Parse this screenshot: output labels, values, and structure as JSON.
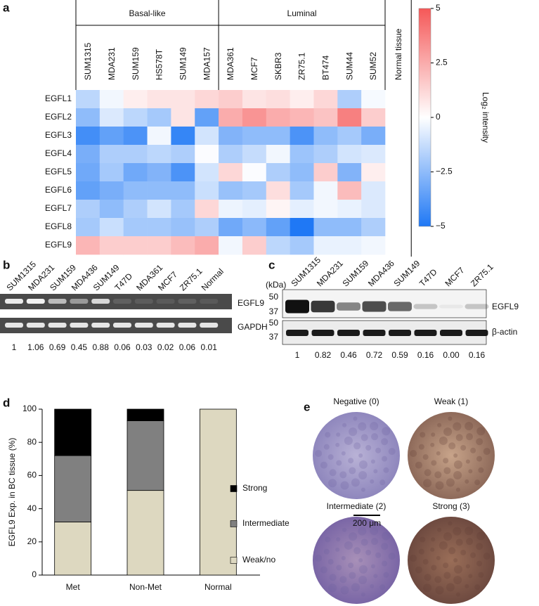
{
  "figure": {
    "a": {
      "letter": "a",
      "chart_data": {
        "type": "heatmap",
        "groups": [
          {
            "name": "Basal-like",
            "columns": [
              "SUM1315",
              "MDA231",
              "SUM159",
              "HS578T",
              "SUM149",
              "MDA157"
            ]
          },
          {
            "name": "Luminal",
            "columns": [
              "MDA361",
              "MCF7",
              "SKBR3",
              "ZR75.1",
              "BT474",
              "SUM44",
              "SUM52"
            ]
          }
        ],
        "extra_column": "Normal tissue",
        "rows": [
          "EGFL1",
          "EGFL2",
          "EGFL3",
          "EGFL4",
          "EGFL5",
          "EGFL6",
          "EGFL7",
          "EGFL8",
          "EGFL9"
        ],
        "values": [
          [
            -1.5,
            -0.3,
            0.5,
            0.8,
            0.8,
            1.2,
            1.5,
            0.8,
            1.0,
            0.5,
            1.2,
            -1.8,
            -0.2
          ],
          [
            -2.5,
            -0.8,
            -1.5,
            -2.0,
            0.8,
            -3.5,
            2.5,
            3.2,
            2.5,
            2.2,
            1.8,
            3.8,
            1.5
          ],
          [
            -4.2,
            -3.5,
            -4.0,
            -0.3,
            -4.5,
            -1.0,
            -2.8,
            -2.5,
            -2.5,
            -4.0,
            -2.5,
            -2.0,
            -3.0
          ],
          [
            -3.0,
            -1.8,
            -1.8,
            -1.5,
            -1.8,
            -0.1,
            -1.8,
            -1.3,
            -0.3,
            -2.2,
            -1.8,
            -1.0,
            -0.8
          ],
          [
            -3.2,
            -2.0,
            -3.2,
            -2.8,
            -4.0,
            -1.0,
            1.2,
            -0.1,
            -1.8,
            -2.5,
            1.5,
            -2.8,
            0.5
          ],
          [
            -3.5,
            -3.0,
            -2.5,
            -2.5,
            -2.5,
            -1.2,
            -2.3,
            -2.0,
            1.0,
            -2.0,
            -0.3,
            2.0,
            -0.8
          ],
          [
            -1.8,
            -2.5,
            -1.8,
            -1.0,
            -2.0,
            1.2,
            -0.4,
            -0.6,
            0.3,
            -0.6,
            -0.3,
            -0.5,
            -0.8
          ],
          [
            -2.0,
            -1.2,
            -2.0,
            -2.0,
            -2.3,
            -1.8,
            -3.2,
            -2.6,
            -3.5,
            -5.0,
            -2.5,
            -2.5,
            -1.8
          ],
          [
            2.2,
            1.5,
            1.5,
            1.5,
            2.0,
            2.5,
            -0.3,
            1.5,
            -1.5,
            -2.0,
            -0.5,
            -0.5,
            -0.3
          ]
        ],
        "colorbar": {
          "label": "Log₂ intensity",
          "lim": [
            -5,
            5
          ],
          "ticks": [
            5,
            2.5,
            0,
            {
              "value": -2.5,
              "label": "−2.5"
            },
            {
              "value": -5,
              "label": "−5"
            }
          ],
          "colors": [
            "#1f78f5",
            "#ffffff",
            "#f55858"
          ]
        }
      }
    },
    "b": {
      "letter": "b",
      "lanes": [
        "SUM1315",
        "MDA231",
        "SUM159",
        "MDA436",
        "SUM149",
        "T47D",
        "MDA361",
        "MCF7",
        "ZR75.1",
        "Normal"
      ],
      "blots": [
        "EGFL9",
        "GAPDH"
      ],
      "values": [
        1,
        1.06,
        0.69,
        0.45,
        0.88,
        0.06,
        0.03,
        0.02,
        0.06,
        0.01
      ]
    },
    "c": {
      "letter": "c",
      "lanes": [
        "SUM1315",
        "MDA231",
        "SUM159",
        "MDA436",
        "SUM149",
        "T47D",
        "MCF7",
        "ZR75.1"
      ],
      "unit": "(kDa)",
      "markers": [
        50,
        37,
        50,
        37
      ],
      "blots": [
        "EGFL9",
        "β-actin"
      ],
      "values": [
        1,
        0.82,
        0.46,
        0.72,
        0.59,
        0.16,
        0.0,
        0.16
      ],
      "value_labels": [
        "1",
        "0.82",
        "0.46",
        "0.72",
        "0.59",
        "0.16",
        "0.00",
        "0.16"
      ]
    },
    "d": {
      "letter": "d",
      "chart_data": {
        "type": "stacked_bar",
        "ylabel": "EGFL9 Exp. in BC tissue (%)",
        "categories": [
          "Met",
          "Non-Met",
          "Normal"
        ],
        "series": [
          {
            "name": "Weak/no",
            "color": "#ddd8c0",
            "values": [
              32,
              51,
              100
            ]
          },
          {
            "name": "Intermediate",
            "color": "#808080",
            "values": [
              40,
              42,
              0
            ]
          },
          {
            "name": "Strong",
            "color": "#000000",
            "values": [
              28,
              7,
              0
            ]
          }
        ],
        "ylim": [
          0,
          100
        ],
        "yticks": [
          0,
          20,
          40,
          60,
          80,
          100
        ]
      }
    },
    "e": {
      "letter": "e",
      "images": [
        "Negative (0)",
        "Weak (1)",
        "Intermediate (2)",
        "Strong (3)"
      ],
      "scale_bar": "200 μm"
    }
  }
}
